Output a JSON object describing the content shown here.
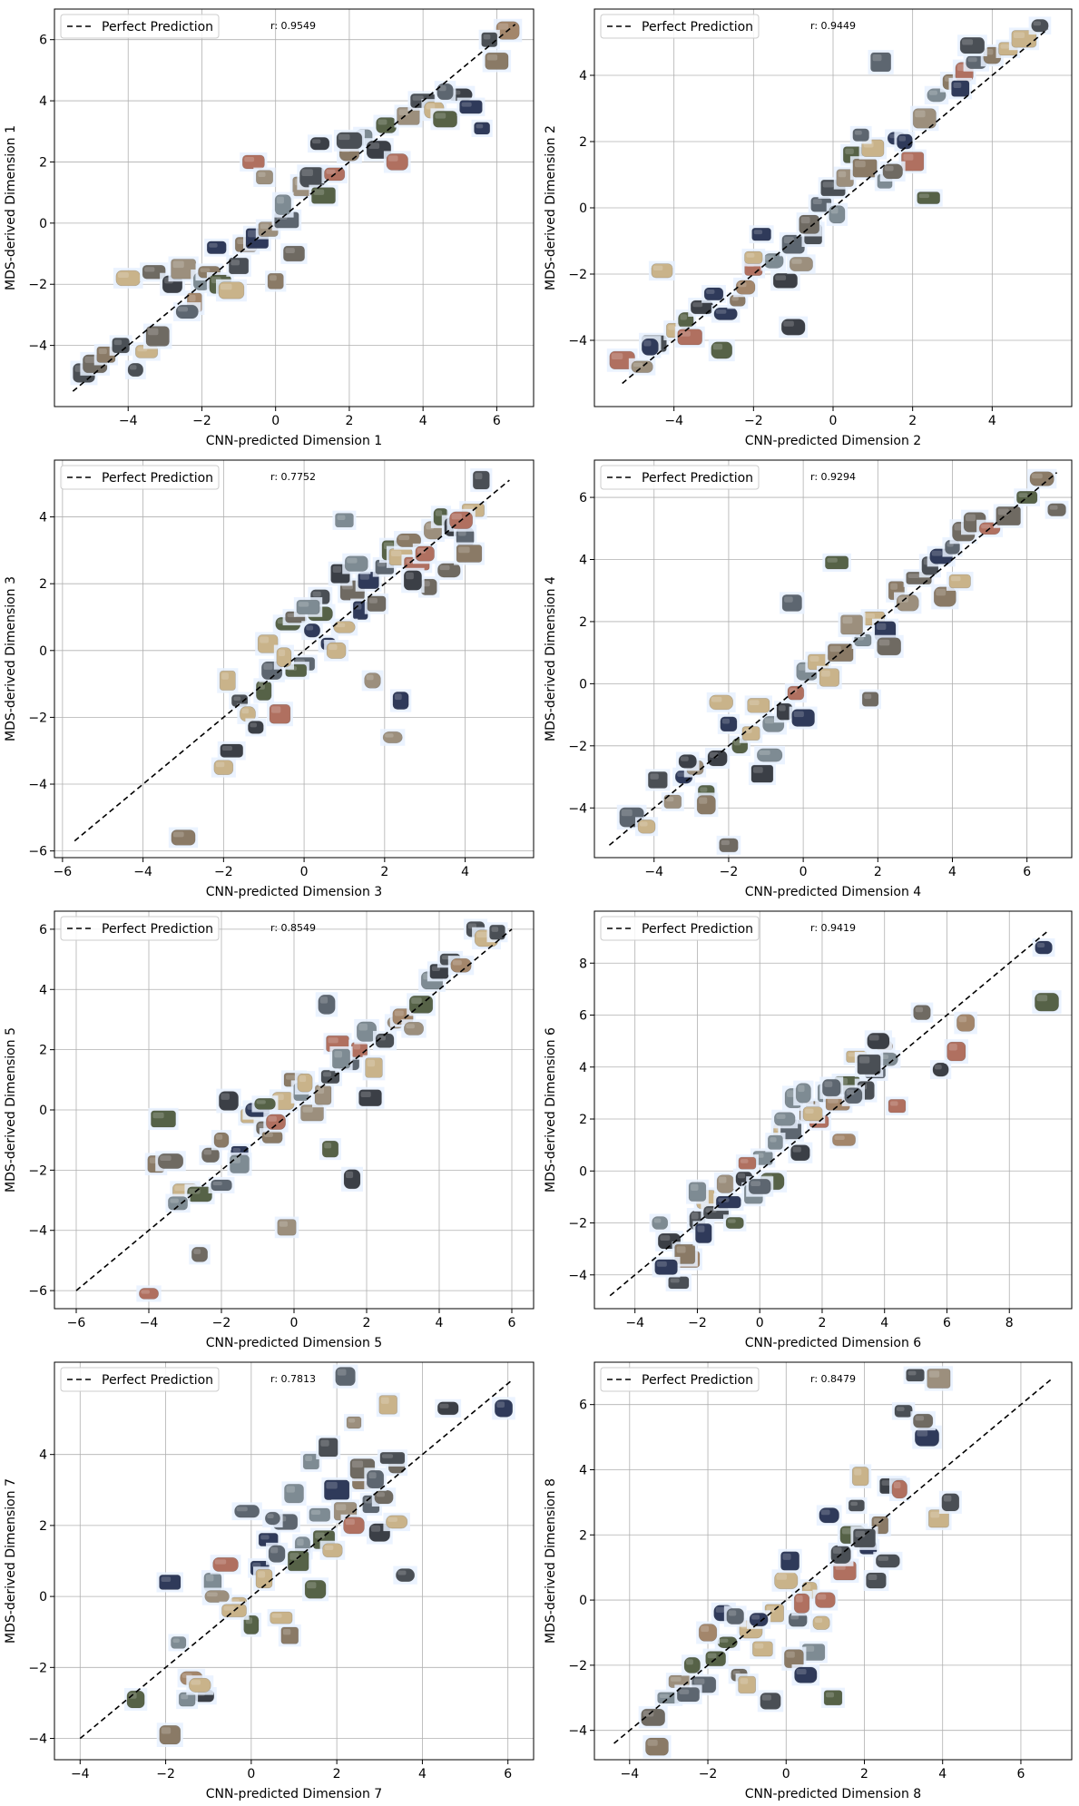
{
  "figure": {
    "title": ""
  },
  "colors": {
    "grid": "#b0b0b0",
    "axes": "#000000",
    "perfect_line": "#000000",
    "legend_border": "#cccccc",
    "marker_bg": "#e8f1ff",
    "rock_palette": [
      "#6f6a62",
      "#8a7a66",
      "#4a4f55",
      "#9c8f7d",
      "#5d6670",
      "#a3866b",
      "#3b3f46",
      "#7e8b93",
      "#b07060",
      "#c9b38a",
      "#566247",
      "#2f3a5a"
    ]
  },
  "chart_data": [
    {
      "type": "scatter",
      "xlabel": "CNN-predicted Dimension 1",
      "ylabel": "MDS-derived Dimension 1",
      "xlim": [
        -6,
        7
      ],
      "ylim": [
        -6,
        7
      ],
      "xticks": [
        -4,
        -2,
        0,
        2,
        4,
        6
      ],
      "yticks": [
        -4,
        -2,
        0,
        2,
        4,
        6
      ],
      "r_label": "r: 0.9549",
      "legend": "Perfect Prediction",
      "line": [
        [
          -5.5,
          -5.5
        ],
        [
          6.5,
          6.5
        ]
      ],
      "x": [
        -5.2,
        -4.9,
        -4.6,
        -4.2,
        -3.8,
        -3.5,
        -3.2,
        -4.0,
        -3.3,
        -2.8,
        -2.5,
        -2.2,
        -2.0,
        -1.8,
        -1.5,
        -1.2,
        -1.0,
        -0.8,
        -0.5,
        -0.2,
        0.0,
        0.3,
        0.5,
        0.8,
        1.0,
        1.3,
        1.6,
        2.0,
        2.4,
        2.8,
        3.0,
        3.3,
        3.6,
        4.0,
        4.3,
        4.6,
        5.0,
        5.3,
        5.6,
        6.0,
        6.3,
        -0.6,
        -1.6,
        0.2,
        1.2,
        -2.4,
        -0.3,
        2.0,
        4.6,
        5.8
      ],
      "y": [
        -4.9,
        -4.6,
        -4.3,
        -4.0,
        -4.8,
        -4.2,
        -3.7,
        -1.8,
        -1.6,
        -2.0,
        -1.5,
        -2.6,
        -1.9,
        -1.6,
        -2.0,
        -2.2,
        -1.4,
        -0.7,
        -0.5,
        -0.2,
        -1.9,
        0.1,
        -1.0,
        1.2,
        1.5,
        0.9,
        1.6,
        2.3,
        2.8,
        2.4,
        3.2,
        2.0,
        3.5,
        4.0,
        3.7,
        3.4,
        4.2,
        3.8,
        3.1,
        5.3,
        6.3,
        2.0,
        -0.8,
        0.6,
        2.6,
        -2.9,
        1.5,
        2.7,
        4.3,
        6.0
      ]
    },
    {
      "type": "scatter",
      "xlabel": "CNN-predicted Dimension 2",
      "ylabel": "MDS-derived Dimension 2",
      "xlim": [
        -6,
        6
      ],
      "ylim": [
        -6,
        6
      ],
      "xticks": [
        -4,
        -2,
        0,
        2,
        4
      ],
      "yticks": [
        -4,
        -2,
        0,
        2,
        4
      ],
      "r_label": "r: 0.9449",
      "legend": "Perfect Prediction",
      "line": [
        [
          -5.3,
          -5.3
        ],
        [
          5.4,
          5.4
        ]
      ],
      "x": [
        -5.3,
        -4.8,
        -4.5,
        -4.0,
        -3.7,
        -3.3,
        -3.0,
        -2.7,
        -2.4,
        -2.2,
        -2.0,
        -1.8,
        -1.5,
        -1.2,
        -1.0,
        -0.8,
        -0.5,
        -0.3,
        0.0,
        0.3,
        0.5,
        0.8,
        1.0,
        1.3,
        1.6,
        2.0,
        2.3,
        2.6,
        3.0,
        3.3,
        3.6,
        4.0,
        4.4,
        4.8,
        5.2,
        -4.3,
        -1.0,
        2.4,
        1.2,
        -3.6,
        -2.8,
        -0.6,
        0.7,
        1.8,
        3.5,
        -4.6,
        -2.0,
        0.1,
        1.5,
        3.2
      ],
      "y": [
        -4.6,
        -4.8,
        -4.1,
        -3.7,
        -3.4,
        -3.0,
        -2.6,
        -3.2,
        -2.8,
        -2.4,
        -1.8,
        -0.8,
        -1.6,
        -2.2,
        -1.1,
        -1.7,
        -0.8,
        0.1,
        0.6,
        0.9,
        1.6,
        1.2,
        1.8,
        0.8,
        2.1,
        1.4,
        2.7,
        3.4,
        3.8,
        4.1,
        4.4,
        4.6,
        4.8,
        5.1,
        5.5,
        -1.9,
        -3.6,
        0.3,
        4.4,
        -3.9,
        -4.3,
        -0.5,
        2.2,
        2.0,
        4.9,
        -4.2,
        -1.5,
        -0.2,
        1.1,
        3.6
      ]
    },
    {
      "type": "scatter",
      "xlabel": "CNN-predicted Dimension 3",
      "ylabel": "MDS-derived Dimension 3",
      "xlim": [
        -6.2,
        5.7
      ],
      "ylim": [
        -6.2,
        5.7
      ],
      "xticks": [
        -6,
        -4,
        -2,
        0,
        2,
        4
      ],
      "yticks": [
        -6,
        -4,
        -2,
        0,
        2,
        4
      ],
      "r_label": "r: 0.7752",
      "legend": "Perfect Prediction",
      "line": [
        [
          -5.7,
          -5.7
        ],
        [
          5.1,
          5.1
        ]
      ],
      "x": [
        -3.0,
        -2.0,
        -1.9,
        -1.6,
        -1.4,
        -1.2,
        -1.0,
        -0.8,
        -0.6,
        -0.4,
        -0.2,
        0.0,
        0.2,
        0.4,
        0.6,
        0.8,
        1.0,
        1.2,
        1.4,
        1.6,
        1.8,
        2.0,
        2.2,
        2.4,
        2.6,
        2.8,
        3.0,
        3.2,
        3.4,
        3.6,
        3.8,
        4.0,
        4.2,
        4.4,
        1.7,
        2.4,
        2.2,
        -0.2,
        0.9,
        3.1,
        0.4,
        -0.9,
        -1.8,
        1.3,
        2.7,
        3.9,
        0.1,
        -0.5,
        1.0,
        4.1
      ],
      "y": [
        -5.6,
        -3.5,
        -0.9,
        -1.5,
        -1.9,
        -2.3,
        -1.2,
        -0.6,
        -1.9,
        0.8,
        1.0,
        -0.4,
        0.6,
        1.6,
        0.2,
        0.0,
        3.9,
        1.8,
        1.2,
        2.1,
        1.4,
        2.5,
        3.0,
        2.8,
        3.3,
        2.6,
        2.9,
        3.6,
        4.0,
        2.4,
        3.7,
        3.4,
        4.2,
        5.1,
        -0.9,
        -1.5,
        -2.6,
        -0.6,
        2.3,
        1.9,
        1.1,
        0.2,
        -3.0,
        2.6,
        2.1,
        3.9,
        1.3,
        -0.2,
        0.7,
        2.9
      ]
    },
    {
      "type": "scatter",
      "xlabel": "CNN-predicted Dimension 4",
      "ylabel": "MDS-derived Dimension 4",
      "xlim": [
        -5.6,
        7.2
      ],
      "ylim": [
        -5.6,
        7.2
      ],
      "xticks": [
        -4,
        -2,
        0,
        2,
        4,
        6
      ],
      "yticks": [
        -4,
        -2,
        0,
        2,
        4,
        6
      ],
      "r_label": "r: 0.9294",
      "legend": "Perfect Prediction",
      "line": [
        [
          -5.2,
          -5.2
        ],
        [
          6.8,
          6.8
        ]
      ],
      "x": [
        -4.6,
        -4.2,
        -3.9,
        -3.5,
        -3.2,
        -2.9,
        -2.6,
        -2.3,
        -2.0,
        -1.7,
        -1.4,
        -1.1,
        -0.8,
        -0.5,
        -0.2,
        0.1,
        0.4,
        0.7,
        1.0,
        1.3,
        1.6,
        1.9,
        2.2,
        2.5,
        2.8,
        3.1,
        3.4,
        3.7,
        4.0,
        4.3,
        4.6,
        5.0,
        5.5,
        6.0,
        6.4,
        6.8,
        -2.2,
        0.9,
        1.8,
        -0.3,
        -3.1,
        -2.0,
        -1.2,
        0.0,
        2.3,
        3.8,
        4.2,
        -2.6,
        -0.9,
        1.3
      ],
      "y": [
        -4.3,
        -4.6,
        -3.1,
        -3.8,
        -3.0,
        -2.7,
        -3.5,
        -2.4,
        -5.2,
        -2.0,
        -1.6,
        -2.9,
        -1.3,
        -0.9,
        -0.3,
        0.4,
        0.7,
        0.2,
        1.0,
        1.8,
        1.4,
        2.1,
        1.7,
        3.0,
        2.6,
        3.4,
        3.8,
        4.1,
        4.4,
        4.9,
        5.2,
        5.0,
        5.4,
        6.0,
        6.6,
        5.6,
        -0.6,
        3.9,
        -0.5,
        2.6,
        -2.5,
        -1.3,
        -0.7,
        -1.1,
        1.2,
        2.8,
        3.3,
        -3.9,
        -2.3,
        1.9
      ]
    },
    {
      "type": "scatter",
      "xlabel": "CNN-predicted Dimension 5",
      "ylabel": "MDS-derived Dimension 5",
      "xlim": [
        -6.6,
        6.6
      ],
      "ylim": [
        -6.6,
        6.6
      ],
      "xticks": [
        -6,
        -4,
        -2,
        0,
        2,
        4,
        6
      ],
      "yticks": [
        -6,
        -4,
        -2,
        0,
        2,
        4,
        6
      ],
      "r_label": "r: 0.8549",
      "legend": "Perfect Prediction",
      "line": [
        [
          -6.0,
          -6.0
        ],
        [
          6.0,
          6.0
        ]
      ],
      "x": [
        -4.0,
        -2.6,
        -3.6,
        -3.8,
        -3.4,
        -3.0,
        -2.6,
        -2.3,
        -2.0,
        -1.8,
        -1.5,
        -1.2,
        -1.0,
        -0.8,
        -0.6,
        -0.3,
        0.0,
        0.2,
        0.5,
        0.8,
        1.0,
        1.2,
        1.5,
        1.8,
        2.0,
        2.2,
        2.5,
        2.8,
        3.0,
        3.3,
        3.5,
        3.8,
        4.0,
        4.3,
        4.6,
        5.0,
        5.3,
        5.6,
        -0.2,
        1.0,
        1.6,
        -3.2,
        -1.5,
        -0.8,
        0.3,
        0.9,
        2.1,
        -2.0,
        -0.5,
        1.3
      ],
      "y": [
        -6.1,
        -4.8,
        -0.3,
        -1.8,
        -1.7,
        -2.7,
        -2.8,
        -1.5,
        -2.5,
        0.3,
        -1.4,
        -0.2,
        0.0,
        -0.6,
        -0.9,
        0.3,
        1.0,
        0.6,
        -0.1,
        0.5,
        1.1,
        2.2,
        1.6,
        2.0,
        2.6,
        1.4,
        2.3,
        2.9,
        3.1,
        2.7,
        3.5,
        4.3,
        4.6,
        5.0,
        4.8,
        6.0,
        5.7,
        5.9,
        -3.9,
        -1.3,
        -2.3,
        -3.1,
        -1.8,
        0.2,
        0.9,
        3.5,
        0.4,
        -1.0,
        -0.4,
        1.7
      ]
    },
    {
      "type": "scatter",
      "xlabel": "CNN-predicted Dimension 6",
      "ylabel": "MDS-derived Dimension 6",
      "xlim": [
        -5.3,
        10.0
      ],
      "ylim": [
        -5.3,
        10.0
      ],
      "xticks": [
        -4,
        -2,
        0,
        2,
        4,
        6,
        8
      ],
      "yticks": [
        -4,
        -2,
        0,
        2,
        4,
        6,
        8
      ],
      "r_label": "r: 0.9419",
      "legend": "Perfect Prediction",
      "line": [
        [
          -4.8,
          -4.8
        ],
        [
          9.2,
          9.2
        ]
      ],
      "x": [
        -3.2,
        -2.9,
        -2.6,
        -2.3,
        -2.0,
        -1.7,
        -1.4,
        -1.1,
        -0.8,
        -0.5,
        -0.2,
        0.1,
        0.4,
        0.7,
        1.0,
        1.3,
        1.6,
        1.9,
        2.2,
        2.5,
        2.8,
        3.1,
        3.4,
        3.7,
        4.0,
        4.4,
        5.2,
        5.8,
        6.3,
        6.6,
        9.1,
        9.2,
        -2.4,
        -1.0,
        1.1,
        2.7,
        3.8,
        0.5,
        -0.4,
        1.7,
        3.0,
        -3.0,
        -1.8,
        0.0,
        2.3,
        4.1,
        -2.0,
        0.8,
        1.4,
        3.5
      ],
      "y": [
        -2.0,
        -2.7,
        -4.3,
        -3.4,
        -1.9,
        -1.1,
        -1.6,
        -0.5,
        -2.0,
        -0.3,
        -0.9,
        0.5,
        -0.4,
        1.5,
        1.6,
        0.7,
        2.3,
        1.9,
        3.0,
        2.6,
        3.3,
        4.4,
        3.1,
        3.8,
        4.8,
        2.5,
        6.1,
        3.9,
        4.6,
        5.7,
        8.6,
        6.5,
        -3.2,
        -1.2,
        2.8,
        1.2,
        5.0,
        1.1,
        0.3,
        2.2,
        2.9,
        -3.7,
        -2.4,
        -0.6,
        3.2,
        4.3,
        -0.8,
        2.0,
        3.0,
        4.1
      ]
    },
    {
      "type": "scatter",
      "xlabel": "CNN-predicted Dimension 7",
      "ylabel": "MDS-derived Dimension 7",
      "xlim": [
        -4.6,
        6.6
      ],
      "ylim": [
        -4.6,
        6.6
      ],
      "xticks": [
        -4,
        -2,
        0,
        2,
        4,
        6
      ],
      "yticks": [
        -4,
        -2,
        0,
        2,
        4
      ],
      "r_label": "r: 0.7813",
      "legend": "Perfect Prediction",
      "line": [
        [
          -4.0,
          -4.0
        ],
        [
          6.1,
          6.1
        ]
      ],
      "x": [
        -2.7,
        -1.9,
        -1.9,
        -1.7,
        -1.4,
        -1.1,
        -0.9,
        -0.6,
        -0.3,
        -0.1,
        0.2,
        0.4,
        0.6,
        0.8,
        1.0,
        1.2,
        1.4,
        1.6,
        1.8,
        2.0,
        2.2,
        2.4,
        2.6,
        2.8,
        3.0,
        3.2,
        3.4,
        3.6,
        4.6,
        5.9,
        2.2,
        3.1,
        0.9,
        -1.5,
        -0.8,
        0.0,
        0.5,
        1.1,
        1.7,
        2.6,
        3.4,
        -0.4,
        0.3,
        1.9,
        2.9,
        -1.2,
        0.7,
        1.5,
        2.4,
        3.3
      ],
      "y": [
        -2.9,
        -3.9,
        0.4,
        -1.3,
        -2.3,
        -2.8,
        0.4,
        0.9,
        -0.2,
        2.4,
        0.8,
        1.6,
        1.2,
        2.1,
        2.9,
        1.4,
        3.8,
        2.3,
        4.2,
        3.0,
        2.4,
        4.9,
        3.3,
        2.6,
        1.8,
        5.4,
        3.7,
        0.6,
        5.3,
        5.3,
        6.2,
        2.8,
        -1.1,
        -2.9,
        0.0,
        -0.8,
        2.2,
        1.0,
        1.6,
        3.6,
        2.1,
        -0.4,
        0.5,
        1.3,
        3.3,
        -2.5,
        -0.6,
        0.2,
        2.0,
        3.9
      ]
    },
    {
      "type": "scatter",
      "xlabel": "CNN-predicted Dimension 8",
      "ylabel": "MDS-derived Dimension 8",
      "xlim": [
        -4.9,
        7.3
      ],
      "ylim": [
        -4.9,
        7.3
      ],
      "xticks": [
        -4,
        -2,
        0,
        2,
        4,
        6
      ],
      "yticks": [
        -4,
        -2,
        0,
        2,
        4,
        6
      ],
      "r_label": "r: 0.8479",
      "legend": "Perfect Prediction",
      "line": [
        [
          -4.4,
          -4.4
        ],
        [
          6.8,
          6.8
        ]
      ],
      "x": [
        -3.4,
        -3.3,
        -3.0,
        -2.7,
        -2.4,
        -2.1,
        -1.8,
        -1.5,
        -1.2,
        -0.9,
        -0.6,
        -0.3,
        0.0,
        0.3,
        0.6,
        0.9,
        1.2,
        1.5,
        1.8,
        2.1,
        2.4,
        2.7,
        3.0,
        3.3,
        3.6,
        3.9,
        4.2,
        1.4,
        0.4,
        -0.7,
        2.6,
        1.0,
        3.9,
        0.1,
        -2.0,
        1.7,
        2.9,
        -1.0,
        0.7,
        2.3,
        -1.6,
        0.2,
        1.9,
        3.5,
        -0.4,
        1.1,
        -2.5,
        -1.3,
        0.5,
        2.0
      ],
      "y": [
        -3.6,
        -4.5,
        -3.0,
        -2.5,
        -2.0,
        -2.6,
        -1.8,
        -1.3,
        -2.3,
        -0.9,
        -1.5,
        -0.4,
        0.6,
        -0.6,
        0.3,
        -0.7,
        -3.0,
        0.9,
        2.9,
        1.6,
        2.3,
        3.5,
        5.8,
        6.9,
        5.0,
        2.5,
        3.0,
        1.4,
        -0.1,
        -0.6,
        1.2,
        0.0,
        6.8,
        1.2,
        -1.0,
        2.0,
        3.4,
        -2.6,
        -1.6,
        0.6,
        -0.4,
        -1.8,
        3.8,
        5.5,
        -3.1,
        2.6,
        -2.9,
        -0.5,
        -2.3,
        1.9
      ]
    }
  ]
}
